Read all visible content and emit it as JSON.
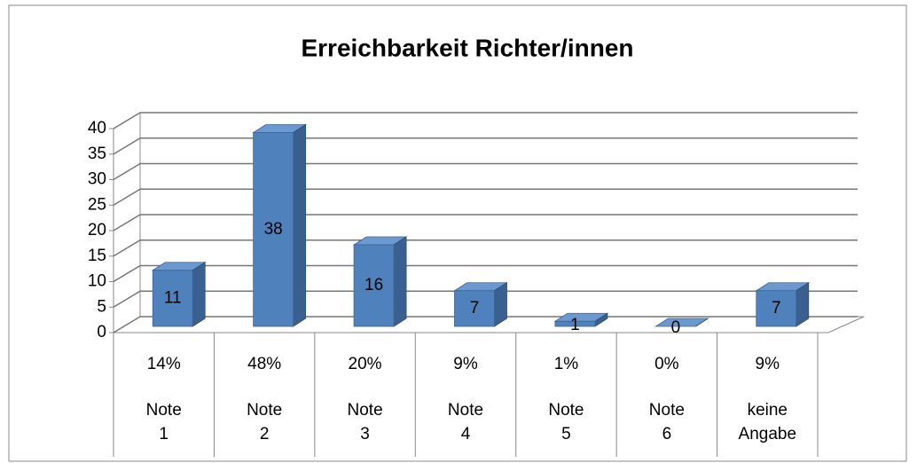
{
  "chart_data": {
    "type": "bar3d",
    "title": "Erreichbarkeit Richter/innen",
    "categories": [
      "Note 1",
      "Note 2",
      "Note 3",
      "Note 4",
      "Note 5",
      "Note 6",
      "keine Angabe"
    ],
    "percentages": [
      "14%",
      "48%",
      "20%",
      "9%",
      "1%",
      "0%",
      "9%"
    ],
    "values": [
      11,
      38,
      16,
      7,
      1,
      0,
      7
    ],
    "color": "#4f81bd",
    "ylim": [
      0,
      40
    ],
    "yticks": [
      0,
      5,
      10,
      15,
      20,
      25,
      30,
      35,
      40
    ],
    "grid": true
  }
}
